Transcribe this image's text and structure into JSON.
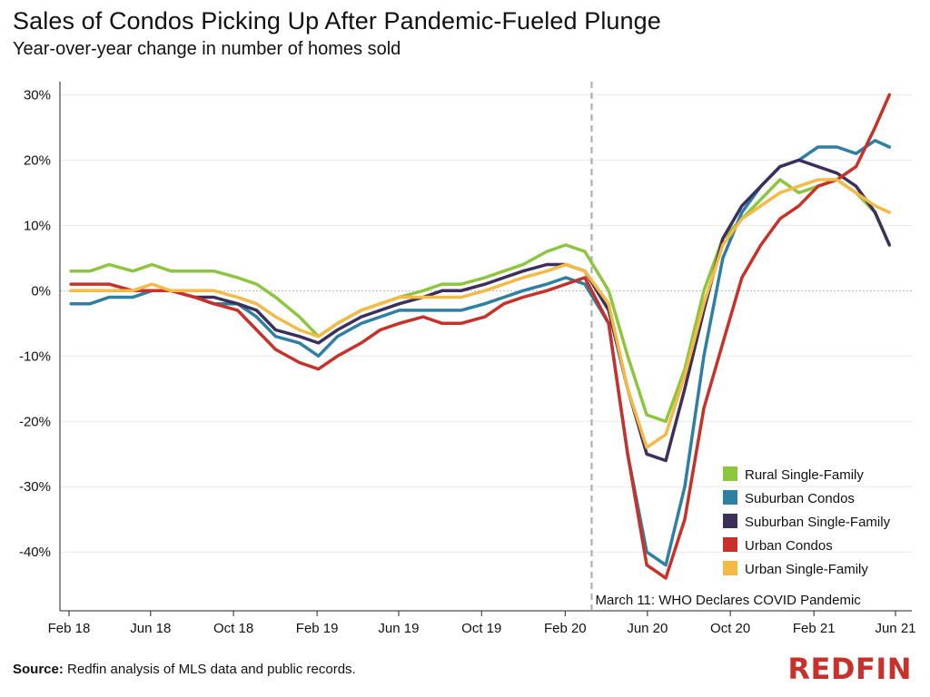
{
  "header": {
    "title": "Sales of Condos Picking Up After Pandemic-Fueled Plunge",
    "subtitle": "Year-over-year change in number of homes sold"
  },
  "footer": {
    "source_label": "Source:",
    "source_text": " Redfin analysis of MLS data and public records.",
    "logo": "REDFIN"
  },
  "chart_data": {
    "type": "line",
    "title": "Sales of Condos Picking Up After Pandemic-Fueled Plunge",
    "subtitle": "Year-over-year change in number of homes sold",
    "xlabel": "",
    "ylabel": "",
    "x_range": [
      "2018-02-01",
      "2021-06-01"
    ],
    "ylim": [
      -49,
      32
    ],
    "y_ticks": [
      30,
      20,
      10,
      0,
      -10,
      -20,
      -30,
      -40
    ],
    "y_tick_labels": [
      "30%",
      "20%",
      "10%",
      "0%",
      "-10%",
      "-20%",
      "-30%",
      "-40%"
    ],
    "x_ticks": [
      "2018-02-01",
      "2018-06-01",
      "2018-10-01",
      "2019-02-01",
      "2019-06-01",
      "2019-10-01",
      "2020-02-01",
      "2020-06-01",
      "2020-10-01",
      "2021-02-01",
      "2021-06-01"
    ],
    "x_tick_labels": [
      "Feb 18",
      "Jun 18",
      "Oct 18",
      "Feb 19",
      "Jun 19",
      "Oct 19",
      "Feb 20",
      "Jun 20",
      "Oct 20",
      "Feb 21",
      "Jun 21"
    ],
    "grid": "horizontal",
    "legend_position": "bottom-right",
    "annotation": {
      "date": "2020-03-11",
      "text": "March 11: WHO Declares COVID Pandemic"
    },
    "series": [
      {
        "name": "Rural Single-Family",
        "color": "#8cc63f",
        "x": [
          "2018-02-04",
          "2018-03-04",
          "2018-04-01",
          "2018-05-06",
          "2018-06-03",
          "2018-07-01",
          "2018-08-05",
          "2018-09-02",
          "2018-10-07",
          "2018-11-04",
          "2018-12-02",
          "2019-01-06",
          "2019-02-03",
          "2019-03-03",
          "2019-04-07",
          "2019-05-05",
          "2019-06-02",
          "2019-07-07",
          "2019-08-04",
          "2019-09-01",
          "2019-10-06",
          "2019-11-03",
          "2019-12-01",
          "2020-01-05",
          "2020-02-02",
          "2020-03-01",
          "2020-04-05",
          "2020-05-03",
          "2020-05-31",
          "2020-06-28",
          "2020-07-26",
          "2020-08-23",
          "2020-09-20",
          "2020-10-18",
          "2020-11-15",
          "2020-12-13",
          "2021-01-10",
          "2021-02-07",
          "2021-03-07",
          "2021-04-04",
          "2021-05-02",
          "2021-05-23"
        ],
        "values": [
          3,
          3,
          4,
          3,
          4,
          3,
          3,
          3,
          2,
          1,
          -1,
          -4,
          -7,
          -5,
          -3,
          -2,
          -1,
          0,
          1,
          1,
          2,
          3,
          4,
          6,
          7,
          6,
          0,
          -10,
          -19,
          -20,
          -12,
          0,
          8,
          11,
          14,
          17,
          15,
          16,
          17,
          15,
          12,
          7
        ]
      },
      {
        "name": "Suburban Condos",
        "color": "#2e7fa4",
        "x": [
          "2018-02-04",
          "2018-03-04",
          "2018-04-01",
          "2018-05-06",
          "2018-06-03",
          "2018-07-01",
          "2018-08-05",
          "2018-09-02",
          "2018-10-07",
          "2018-11-04",
          "2018-12-02",
          "2019-01-06",
          "2019-02-03",
          "2019-03-03",
          "2019-04-07",
          "2019-05-05",
          "2019-06-02",
          "2019-07-07",
          "2019-08-04",
          "2019-09-01",
          "2019-10-06",
          "2019-11-03",
          "2019-12-01",
          "2020-01-05",
          "2020-02-02",
          "2020-03-01",
          "2020-04-05",
          "2020-05-03",
          "2020-05-31",
          "2020-06-28",
          "2020-07-26",
          "2020-08-23",
          "2020-09-20",
          "2020-10-18",
          "2020-11-15",
          "2020-12-13",
          "2021-01-10",
          "2021-02-07",
          "2021-03-07",
          "2021-04-04",
          "2021-05-02",
          "2021-05-23"
        ],
        "values": [
          -2,
          -2,
          -1,
          -1,
          0,
          0,
          -1,
          -2,
          -2,
          -4,
          -7,
          -8,
          -10,
          -7,
          -5,
          -4,
          -3,
          -3,
          -3,
          -3,
          -2,
          -1,
          0,
          1,
          2,
          1,
          -5,
          -25,
          -40,
          -42,
          -30,
          -10,
          5,
          12,
          16,
          19,
          20,
          22,
          22,
          21,
          23,
          22
        ]
      },
      {
        "name": "Suburban Single-Family",
        "color": "#3d2f5b",
        "x": [
          "2018-02-04",
          "2018-03-04",
          "2018-04-01",
          "2018-05-06",
          "2018-06-03",
          "2018-07-01",
          "2018-08-05",
          "2018-09-02",
          "2018-10-07",
          "2018-11-04",
          "2018-12-02",
          "2019-01-06",
          "2019-02-03",
          "2019-03-03",
          "2019-04-07",
          "2019-05-05",
          "2019-06-02",
          "2019-07-07",
          "2019-08-04",
          "2019-09-01",
          "2019-10-06",
          "2019-11-03",
          "2019-12-01",
          "2020-01-05",
          "2020-02-02",
          "2020-03-01",
          "2020-04-05",
          "2020-05-03",
          "2020-05-31",
          "2020-06-28",
          "2020-07-26",
          "2020-08-23",
          "2020-09-20",
          "2020-10-18",
          "2020-11-15",
          "2020-12-13",
          "2021-01-10",
          "2021-02-07",
          "2021-03-07",
          "2021-04-04",
          "2021-05-02",
          "2021-05-23"
        ],
        "values": [
          0,
          0,
          0,
          0,
          0,
          0,
          -1,
          -1,
          -2,
          -3,
          -6,
          -7,
          -8,
          -6,
          -4,
          -3,
          -2,
          -1,
          0,
          0,
          1,
          2,
          3,
          4,
          4,
          3,
          -3,
          -15,
          -25,
          -26,
          -15,
          -3,
          8,
          13,
          16,
          19,
          20,
          19,
          18,
          16,
          12,
          7
        ]
      },
      {
        "name": "Urban Condos",
        "color": "#c8312a",
        "x": [
          "2018-02-04",
          "2018-03-04",
          "2018-04-01",
          "2018-05-06",
          "2018-06-03",
          "2018-07-01",
          "2018-08-05",
          "2018-09-02",
          "2018-10-07",
          "2018-11-04",
          "2018-12-02",
          "2019-01-06",
          "2019-02-03",
          "2019-03-03",
          "2019-04-07",
          "2019-05-05",
          "2019-06-02",
          "2019-07-07",
          "2019-08-04",
          "2019-09-01",
          "2019-10-06",
          "2019-11-03",
          "2019-12-01",
          "2020-01-05",
          "2020-02-02",
          "2020-03-01",
          "2020-04-05",
          "2020-05-03",
          "2020-05-31",
          "2020-06-28",
          "2020-07-26",
          "2020-08-23",
          "2020-09-20",
          "2020-10-18",
          "2020-11-15",
          "2020-12-13",
          "2021-01-10",
          "2021-02-07",
          "2021-03-07",
          "2021-04-04",
          "2021-05-02",
          "2021-05-23"
        ],
        "values": [
          1,
          1,
          1,
          0,
          0,
          0,
          -1,
          -2,
          -3,
          -6,
          -9,
          -11,
          -12,
          -10,
          -8,
          -6,
          -5,
          -4,
          -5,
          -5,
          -4,
          -2,
          -1,
          0,
          1,
          2,
          -5,
          -25,
          -42,
          -44,
          -35,
          -18,
          -8,
          2,
          7,
          11,
          13,
          16,
          17,
          19,
          25,
          30
        ]
      },
      {
        "name": "Urban Single-Family",
        "color": "#f5b945",
        "x": [
          "2018-02-04",
          "2018-03-04",
          "2018-04-01",
          "2018-05-06",
          "2018-06-03",
          "2018-07-01",
          "2018-08-05",
          "2018-09-02",
          "2018-10-07",
          "2018-11-04",
          "2018-12-02",
          "2019-01-06",
          "2019-02-03",
          "2019-03-03",
          "2019-04-07",
          "2019-05-05",
          "2019-06-02",
          "2019-07-07",
          "2019-08-04",
          "2019-09-01",
          "2019-10-06",
          "2019-11-03",
          "2019-12-01",
          "2020-01-05",
          "2020-02-02",
          "2020-03-01",
          "2020-04-05",
          "2020-05-03",
          "2020-05-31",
          "2020-06-28",
          "2020-07-26",
          "2020-08-23",
          "2020-09-20",
          "2020-10-18",
          "2020-11-15",
          "2020-12-13",
          "2021-01-10",
          "2021-02-07",
          "2021-03-07",
          "2021-04-04",
          "2021-05-02",
          "2021-05-23"
        ],
        "values": [
          0,
          0,
          0,
          0,
          1,
          0,
          0,
          0,
          -1,
          -2,
          -4,
          -6,
          -7,
          -5,
          -3,
          -2,
          -1,
          -1,
          -1,
          -1,
          0,
          1,
          2,
          3,
          4,
          3,
          -2,
          -15,
          -24,
          -22,
          -13,
          -2,
          7,
          11,
          13,
          15,
          16,
          17,
          17,
          15,
          13,
          12
        ]
      }
    ]
  }
}
